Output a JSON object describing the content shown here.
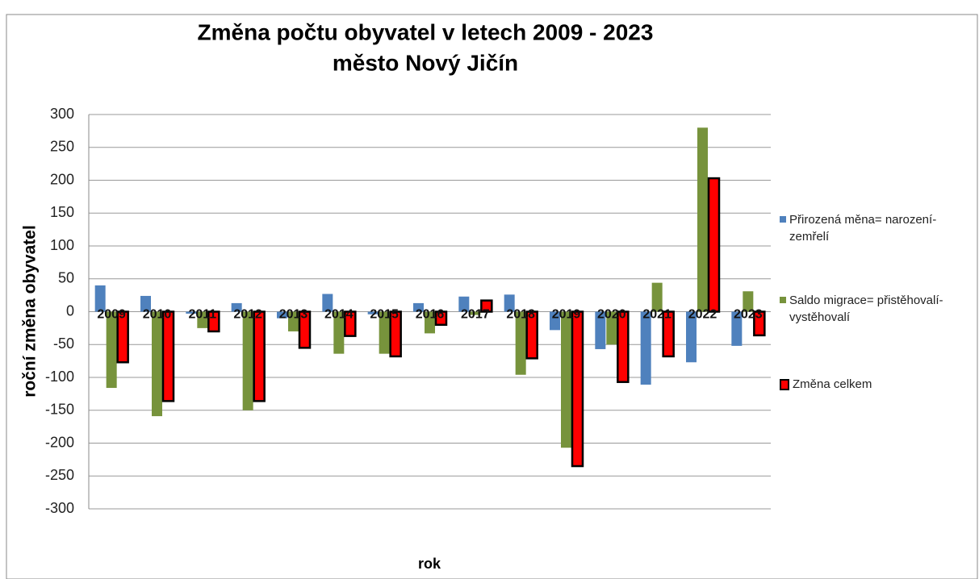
{
  "chart_data": {
    "type": "bar",
    "title": "Změna počtu obyvatel v letech 2009 - 2023",
    "subtitle": "město Nový Jičín",
    "y_label": "roční změna obyvatel",
    "x_label": "rok",
    "categories": [
      "2009",
      "2010",
      "2011",
      "2012",
      "2013",
      "2014",
      "2015",
      "2016",
      "2017",
      "2018",
      "2019",
      "2020",
      "2021",
      "2022",
      "2023"
    ],
    "series": [
      {
        "name": "Přirozená měna= narození-zemřelí",
        "color": "#4f81bd",
        "values": [
          40,
          24,
          -3,
          13,
          -10,
          27,
          -4,
          13,
          23,
          26,
          -28,
          -57,
          -111,
          -77,
          -52
        ]
      },
      {
        "name": "Saldo migrace= přistěhovalí-vystěhovalí",
        "color": "#77933c",
        "values": [
          -116,
          -159,
          -25,
          -150,
          -30,
          -64,
          -64,
          -33,
          -5,
          -96,
          -207,
          -50,
          44,
          280,
          31
        ]
      },
      {
        "name": "Změna celkem",
        "color": "#ff0000",
        "values": [
          -77,
          -136,
          -30,
          -136,
          -55,
          -37,
          -68,
          -20,
          17,
          -71,
          -235,
          -107,
          -68,
          203,
          -36
        ]
      }
    ],
    "ylim": [
      -300,
      300
    ],
    "yticks": [
      -300,
      -250,
      -200,
      -150,
      -100,
      -50,
      0,
      50,
      100,
      150,
      200,
      250,
      300
    ],
    "grid": true,
    "legend": "right"
  }
}
